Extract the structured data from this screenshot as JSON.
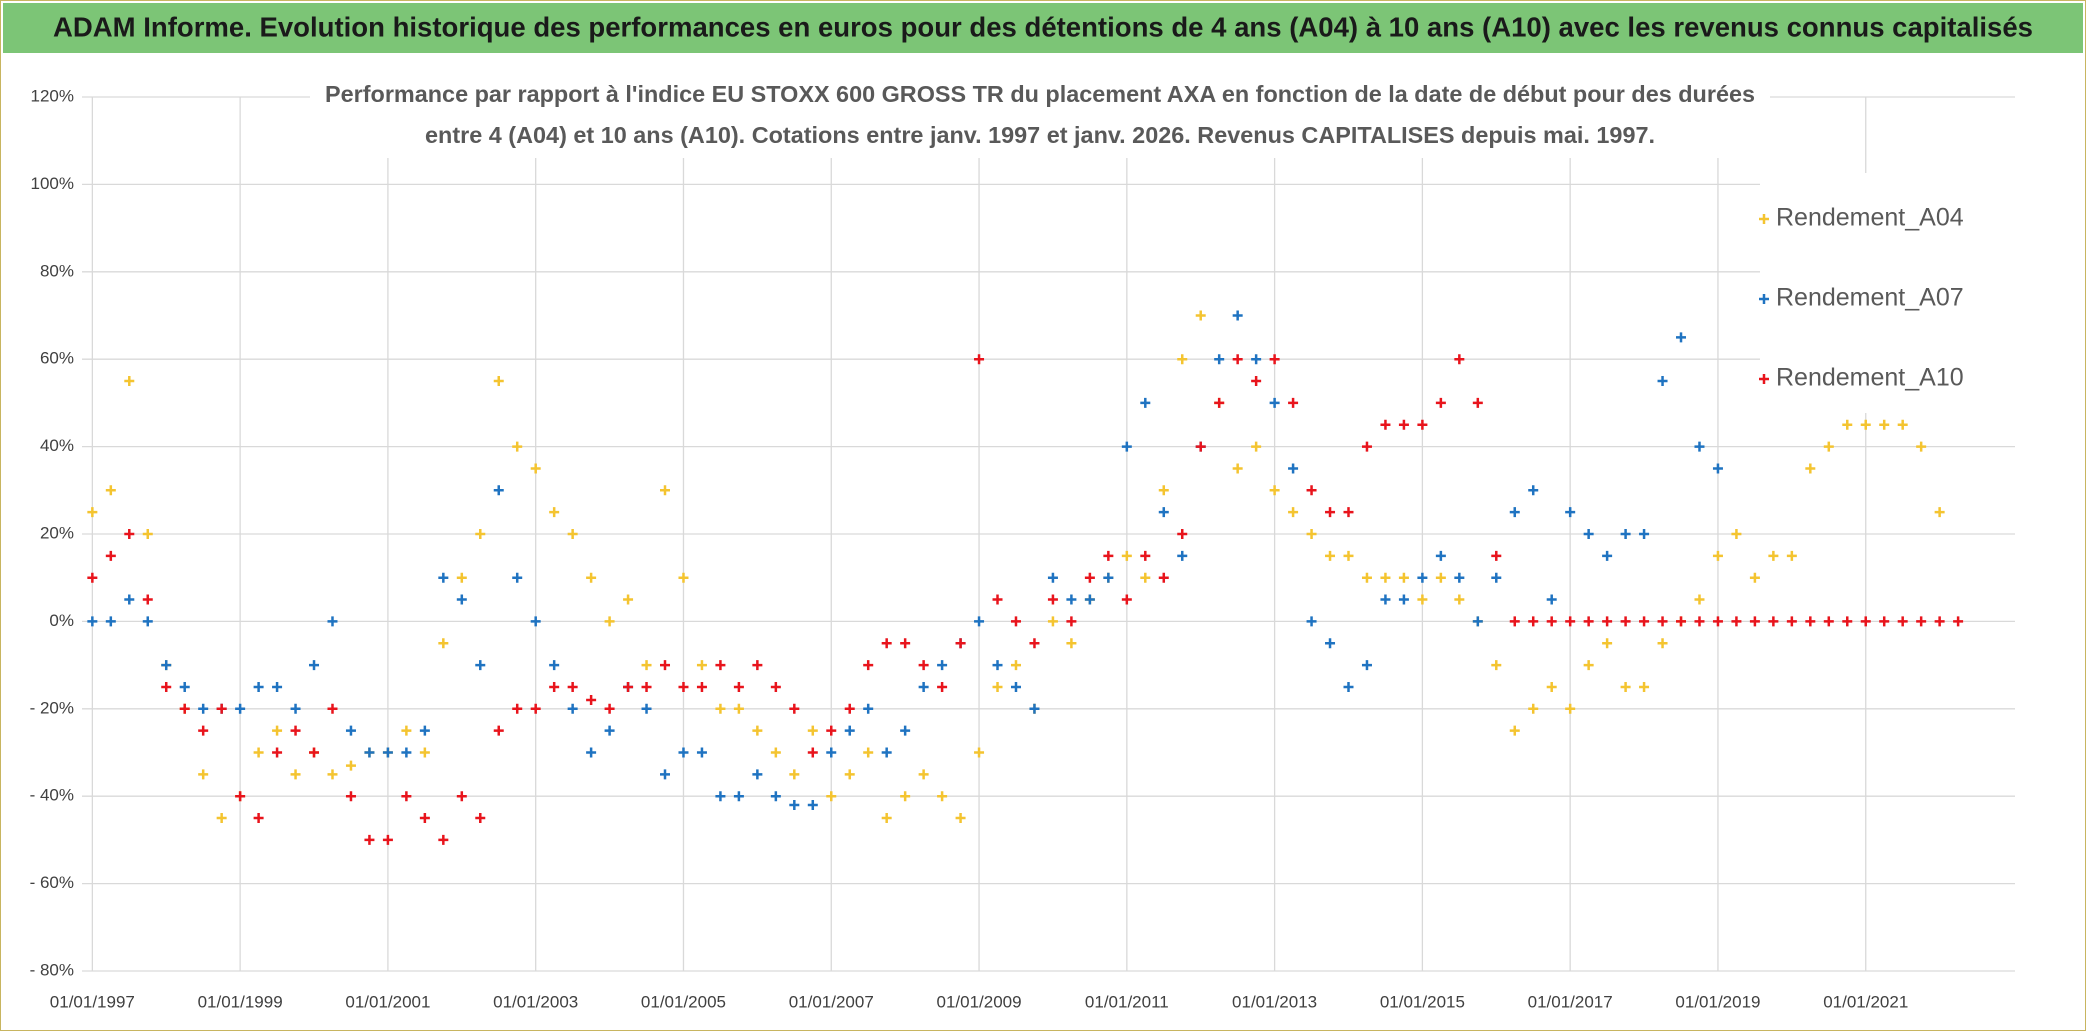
{
  "chart_data": {
    "type": "scatter",
    "title": "ADAM Informe. Evolution historique des performances en euros pour des détentions de 4 ans (A04) à 10 ans (A10) avec les revenus connus capitalisés",
    "subtitle": [
      "Performance par rapport à l'indice EU STOXX 600 GROSS TR  du placement AXA en fonction de la date de début pour des durées",
      "entre 4 (A04) et 10 ans (A10). Cotations entre janv. 1997 et janv. 2026. Revenus CAPITALISES depuis mai. 1997."
    ],
    "xlim": [
      1996.86,
      2023.02
    ],
    "xticks": [
      {
        "value": 1997,
        "label": "01/01/1997"
      },
      {
        "value": 1999,
        "label": "01/01/1999"
      },
      {
        "value": 2001,
        "label": "01/01/2001"
      },
      {
        "value": 2003,
        "label": "01/01/2003"
      },
      {
        "value": 2005,
        "label": "01/01/2005"
      },
      {
        "value": 2007,
        "label": "01/01/2007"
      },
      {
        "value": 2009,
        "label": "01/01/2009"
      },
      {
        "value": 2011,
        "label": "01/01/2011"
      },
      {
        "value": 2013,
        "label": "01/01/2013"
      },
      {
        "value": 2015,
        "label": "01/01/2015"
      },
      {
        "value": 2017,
        "label": "01/01/2017"
      },
      {
        "value": 2019,
        "label": "01/01/2019"
      },
      {
        "value": 2021,
        "label": "01/01/2021"
      }
    ],
    "ylim": [
      -80,
      120
    ],
    "yticks": [
      {
        "value": -80,
        "label": "- 80%"
      },
      {
        "value": -60,
        "label": "- 60%"
      },
      {
        "value": -40,
        "label": "- 40%"
      },
      {
        "value": -20,
        "label": "- 20%"
      },
      {
        "value": 0,
        "label": "0%"
      },
      {
        "value": 20,
        "label": "20%"
      },
      {
        "value": 40,
        "label": "40%"
      },
      {
        "value": 60,
        "label": "60%"
      },
      {
        "value": 80,
        "label": "80%"
      },
      {
        "value": 100,
        "label": "100%"
      },
      {
        "value": 120,
        "label": "120%"
      }
    ],
    "grid": true,
    "legend": "upper right",
    "x": [
      1997,
      1997.25,
      1997.5,
      1997.75,
      1998,
      1998.25,
      1998.5,
      1998.75,
      1999,
      1999.25,
      1999.5,
      1999.75,
      2000,
      2000.25,
      2000.5,
      2000.75,
      2001,
      2001.25,
      2001.5,
      2001.75,
      2002,
      2002.25,
      2002.5,
      2002.75,
      2003,
      2003.25,
      2003.5,
      2003.75,
      2004,
      2004.25,
      2004.5,
      2004.75,
      2005,
      2005.25,
      2005.5,
      2005.75,
      2006,
      2006.25,
      2006.5,
      2006.75,
      2007,
      2007.25,
      2007.5,
      2007.75,
      2008,
      2008.25,
      2008.5,
      2008.75,
      2009,
      2009.25,
      2009.5,
      2009.75,
      2010,
      2010.25,
      2010.5,
      2010.75,
      2011,
      2011.25,
      2011.5,
      2011.75,
      2012,
      2012.25,
      2012.5,
      2012.75,
      2013,
      2013.25,
      2013.5,
      2013.75,
      2014,
      2014.25,
      2014.5,
      2014.75,
      2015,
      2015.25,
      2015.5,
      2015.75,
      2016,
      2016.25,
      2016.5,
      2016.75,
      2017,
      2017.25,
      2017.5,
      2017.75,
      2018,
      2018.25,
      2018.5,
      2018.75,
      2019,
      2019.25,
      2019.5,
      2019.75,
      2020,
      2020.25,
      2020.5,
      2020.75,
      2021,
      2021.25,
      2021.5,
      2021.75,
      2022,
      2022.25
    ],
    "series": [
      {
        "name": "Rendement_A04",
        "color": "#f4c430",
        "values": [
          25,
          30,
          55,
          20,
          -10,
          -20,
          -35,
          -45,
          -40,
          -30,
          -25,
          -35,
          -30,
          -35,
          -33,
          -30,
          -30,
          -25,
          -30,
          -5,
          10,
          20,
          55,
          40,
          35,
          25,
          20,
          10,
          0,
          5,
          -10,
          30,
          10,
          -10,
          -20,
          -20,
          -25,
          -30,
          -35,
          -25,
          -40,
          -35,
          -30,
          -45,
          -40,
          -35,
          -40,
          -45,
          -30,
          -15,
          -10,
          -20,
          0,
          -5,
          5,
          10,
          15,
          10,
          30,
          60,
          70,
          50,
          35,
          40,
          30,
          25,
          20,
          15,
          15,
          10,
          10,
          10,
          5,
          10,
          5,
          0,
          -10,
          -25,
          -20,
          -15,
          -20,
          -10,
          -5,
          -15,
          -15,
          -5,
          0,
          5,
          15,
          20,
          10,
          15,
          15,
          35,
          40,
          45,
          45,
          45,
          45,
          40,
          25,
          null
        ]
      },
      {
        "name": "Rendement_A07",
        "color": "#1f73c1",
        "values": [
          0,
          0,
          5,
          0,
          -10,
          -15,
          -20,
          -20,
          -20,
          -15,
          -15,
          -20,
          -10,
          0,
          -25,
          -30,
          -30,
          -30,
          -25,
          10,
          5,
          -10,
          30,
          10,
          0,
          -10,
          -20,
          -30,
          -25,
          -15,
          -20,
          -35,
          -30,
          -30,
          -40,
          -40,
          -35,
          -40,
          -42,
          -42,
          -30,
          -25,
          -20,
          -30,
          -25,
          -15,
          -10,
          -5,
          0,
          -10,
          -15,
          -20,
          10,
          5,
          5,
          10,
          40,
          50,
          25,
          15,
          40,
          60,
          70,
          60,
          50,
          35,
          0,
          -5,
          -15,
          -10,
          5,
          5,
          10,
          15,
          10,
          0,
          10,
          25,
          30,
          5,
          25,
          20,
          15,
          20,
          20,
          55,
          65,
          40,
          35,
          null,
          null,
          null,
          null,
          null,
          null,
          null,
          null,
          null,
          null,
          null,
          null,
          null
        ]
      },
      {
        "name": "Rendement_A10",
        "color": "#e8141c",
        "values": [
          10,
          15,
          20,
          5,
          -15,
          -20,
          -25,
          -20,
          -40,
          -45,
          -30,
          -25,
          -30,
          -20,
          -40,
          -50,
          -50,
          -40,
          -45,
          -50,
          -40,
          -45,
          -25,
          -20,
          -20,
          -15,
          -15,
          -18,
          -20,
          -15,
          -15,
          -10,
          -15,
          -15,
          -10,
          -15,
          -10,
          -15,
          -20,
          -30,
          -25,
          -20,
          -10,
          -5,
          -5,
          -10,
          -15,
          -5,
          60,
          5,
          0,
          -5,
          5,
          0,
          10,
          15,
          5,
          15,
          10,
          20,
          40,
          50,
          60,
          55,
          60,
          50,
          30,
          25,
          25,
          40,
          45,
          45,
          45,
          50,
          60,
          50,
          15,
          0,
          0,
          0,
          0,
          0,
          0,
          0,
          0,
          0,
          0,
          0,
          0,
          0,
          0,
          0,
          0,
          0,
          0,
          0,
          0,
          0,
          0,
          0,
          0,
          0
        ]
      }
    ]
  }
}
